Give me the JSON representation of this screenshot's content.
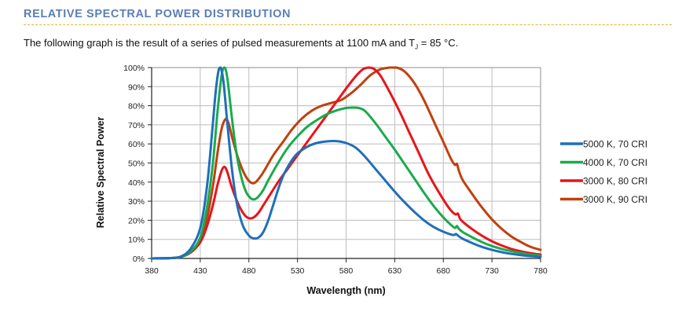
{
  "section": {
    "title": "RELATIVE SPECTRAL POWER DISTRIBUTION",
    "intro_before": "The following graph is the result of a series of pulsed measurements at 1100 mA and T",
    "intro_sub": "J",
    "intro_after": " = 85 °C."
  },
  "chart_data": {
    "type": "line",
    "title": "",
    "xlabel": "Wavelength (nm)",
    "ylabel": "Relative Spectral Power",
    "xlim": [
      380,
      780
    ],
    "ylim": [
      0,
      100
    ],
    "x_ticks": [
      380,
      430,
      480,
      530,
      580,
      630,
      680,
      730,
      780
    ],
    "y_ticks": [
      "0%",
      "10%",
      "20%",
      "30%",
      "40%",
      "50%",
      "60%",
      "70%",
      "80%",
      "90%",
      "100%"
    ],
    "grid": true,
    "legend_position": "right",
    "series": [
      {
        "name": "5000 K, 70 CRI",
        "color": "#1f6fba",
        "points": [
          [
            380,
            0
          ],
          [
            400,
            0.2
          ],
          [
            410,
            1
          ],
          [
            420,
            5
          ],
          [
            430,
            16
          ],
          [
            437,
            38
          ],
          [
            442,
            65
          ],
          [
            446,
            88
          ],
          [
            449,
            99
          ],
          [
            451,
            100
          ],
          [
            454,
            92
          ],
          [
            458,
            70
          ],
          [
            463,
            45
          ],
          [
            468,
            28
          ],
          [
            474,
            17
          ],
          [
            480,
            12
          ],
          [
            485,
            10.5
          ],
          [
            490,
            11
          ],
          [
            495,
            14
          ],
          [
            500,
            20
          ],
          [
            505,
            28
          ],
          [
            510,
            36
          ],
          [
            515,
            43
          ],
          [
            520,
            48
          ],
          [
            525,
            52
          ],
          [
            530,
            55
          ],
          [
            540,
            58.5
          ],
          [
            550,
            60.5
          ],
          [
            560,
            61.3
          ],
          [
            570,
            61.5
          ],
          [
            580,
            60.5
          ],
          [
            590,
            58
          ],
          [
            600,
            53
          ],
          [
            610,
            47
          ],
          [
            620,
            41
          ],
          [
            630,
            35
          ],
          [
            640,
            29.5
          ],
          [
            650,
            24.5
          ],
          [
            660,
            20
          ],
          [
            670,
            16.5
          ],
          [
            680,
            14
          ],
          [
            690,
            12.3
          ],
          [
            693,
            12.8
          ],
          [
            695,
            12
          ],
          [
            700,
            10.3
          ],
          [
            710,
            8
          ],
          [
            720,
            6
          ],
          [
            730,
            4.5
          ],
          [
            740,
            3.3
          ],
          [
            750,
            2.4
          ],
          [
            760,
            1.7
          ],
          [
            770,
            1.2
          ],
          [
            780,
            0.8
          ]
        ]
      },
      {
        "name": "4000 K, 70 CRI",
        "color": "#1aaa4e",
        "points": [
          [
            380,
            0
          ],
          [
            400,
            0.2
          ],
          [
            410,
            0.8
          ],
          [
            420,
            3.5
          ],
          [
            430,
            11
          ],
          [
            437,
            27
          ],
          [
            443,
            50
          ],
          [
            448,
            78
          ],
          [
            452,
            96
          ],
          [
            455,
            100
          ],
          [
            458,
            94
          ],
          [
            462,
            76
          ],
          [
            467,
            56
          ],
          [
            472,
            43
          ],
          [
            477,
            35
          ],
          [
            482,
            31.5
          ],
          [
            486,
            31
          ],
          [
            490,
            32.5
          ],
          [
            495,
            36
          ],
          [
            500,
            41
          ],
          [
            510,
            50
          ],
          [
            520,
            58
          ],
          [
            530,
            64
          ],
          [
            540,
            69
          ],
          [
            550,
            72.5
          ],
          [
            560,
            75.5
          ],
          [
            570,
            77.5
          ],
          [
            580,
            78.8
          ],
          [
            590,
            79
          ],
          [
            595,
            78.5
          ],
          [
            600,
            77
          ],
          [
            610,
            71
          ],
          [
            620,
            64
          ],
          [
            630,
            57
          ],
          [
            640,
            49.5
          ],
          [
            650,
            42
          ],
          [
            660,
            34.5
          ],
          [
            670,
            27.5
          ],
          [
            680,
            21.5
          ],
          [
            688,
            17.5
          ],
          [
            692,
            16
          ],
          [
            694,
            17
          ],
          [
            696,
            15.5
          ],
          [
            700,
            13.8
          ],
          [
            710,
            11
          ],
          [
            720,
            8.5
          ],
          [
            730,
            6.5
          ],
          [
            740,
            5
          ],
          [
            750,
            3.8
          ],
          [
            760,
            2.8
          ],
          [
            770,
            2
          ],
          [
            780,
            1.4
          ]
        ]
      },
      {
        "name": "3000 K, 80 CRI",
        "color": "#e8141b",
        "points": [
          [
            380,
            0
          ],
          [
            400,
            0.2
          ],
          [
            410,
            0.8
          ],
          [
            420,
            3
          ],
          [
            430,
            8.5
          ],
          [
            437,
            17
          ],
          [
            443,
            28
          ],
          [
            448,
            39
          ],
          [
            452,
            46
          ],
          [
            455,
            48
          ],
          [
            458,
            45
          ],
          [
            462,
            38
          ],
          [
            467,
            31
          ],
          [
            472,
            25.5
          ],
          [
            477,
            22
          ],
          [
            481,
            21
          ],
          [
            485,
            21.5
          ],
          [
            490,
            24
          ],
          [
            495,
            28
          ],
          [
            500,
            32
          ],
          [
            510,
            40
          ],
          [
            520,
            47
          ],
          [
            530,
            54
          ],
          [
            540,
            61
          ],
          [
            550,
            68
          ],
          [
            560,
            75
          ],
          [
            570,
            82
          ],
          [
            580,
            89
          ],
          [
            590,
            95.5
          ],
          [
            597,
            99
          ],
          [
            603,
            100
          ],
          [
            608,
            99.5
          ],
          [
            615,
            96
          ],
          [
            625,
            87
          ],
          [
            635,
            77
          ],
          [
            645,
            66
          ],
          [
            655,
            55
          ],
          [
            665,
            44
          ],
          [
            675,
            35
          ],
          [
            685,
            27
          ],
          [
            690,
            24
          ],
          [
            693,
            23
          ],
          [
            695,
            23.5
          ],
          [
            697,
            21
          ],
          [
            700,
            19.2
          ],
          [
            710,
            15.2
          ],
          [
            720,
            11.8
          ],
          [
            730,
            9
          ],
          [
            740,
            6.8
          ],
          [
            750,
            5
          ],
          [
            760,
            3.7
          ],
          [
            770,
            2.7
          ],
          [
            780,
            2
          ]
        ]
      },
      {
        "name": "3000 K, 90 CRI",
        "color": "#c0400f",
        "points": [
          [
            380,
            0
          ],
          [
            400,
            0.2
          ],
          [
            410,
            0.8
          ],
          [
            420,
            3.2
          ],
          [
            430,
            9.5
          ],
          [
            437,
            21
          ],
          [
            443,
            38
          ],
          [
            448,
            56
          ],
          [
            452,
            68
          ],
          [
            456,
            73
          ],
          [
            459,
            71
          ],
          [
            463,
            63
          ],
          [
            468,
            54
          ],
          [
            473,
            47
          ],
          [
            478,
            42
          ],
          [
            483,
            39.5
          ],
          [
            487,
            40
          ],
          [
            492,
            43
          ],
          [
            497,
            47
          ],
          [
            505,
            54
          ],
          [
            515,
            61
          ],
          [
            525,
            68
          ],
          [
            535,
            73.5
          ],
          [
            545,
            77.5
          ],
          [
            555,
            80
          ],
          [
            565,
            81.5
          ],
          [
            575,
            83
          ],
          [
            585,
            86.5
          ],
          [
            595,
            91
          ],
          [
            605,
            96
          ],
          [
            615,
            99
          ],
          [
            625,
            100
          ],
          [
            632,
            100
          ],
          [
            640,
            98
          ],
          [
            650,
            92
          ],
          [
            660,
            83
          ],
          [
            670,
            72
          ],
          [
            680,
            61
          ],
          [
            688,
            52
          ],
          [
            692,
            49
          ],
          [
            694,
            49.5
          ],
          [
            696,
            46
          ],
          [
            700,
            41
          ],
          [
            710,
            33.5
          ],
          [
            720,
            26.5
          ],
          [
            730,
            20.5
          ],
          [
            740,
            15.5
          ],
          [
            750,
            11.5
          ],
          [
            760,
            8.5
          ],
          [
            770,
            6
          ],
          [
            780,
            4.5
          ]
        ]
      }
    ]
  }
}
